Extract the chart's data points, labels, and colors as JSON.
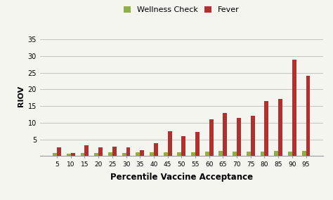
{
  "categories": [
    5,
    10,
    15,
    20,
    25,
    30,
    35,
    40,
    45,
    50,
    55,
    60,
    65,
    70,
    75,
    80,
    85,
    90,
    95
  ],
  "wellness_check": [
    1.0,
    0.8,
    0.9,
    1.0,
    1.1,
    1.0,
    1.1,
    1.2,
    1.1,
    1.2,
    1.2,
    1.3,
    1.5,
    1.3,
    1.4,
    1.4,
    1.5,
    1.4,
    1.5
  ],
  "fever": [
    2.6,
    0.9,
    3.2,
    2.6,
    2.9,
    2.6,
    1.7,
    3.9,
    7.5,
    6.0,
    7.2,
    11.1,
    13.0,
    11.4,
    12.0,
    16.4,
    17.1,
    29.0,
    24.1
  ],
  "wellness_color": "#8db040",
  "fever_color": "#b03030",
  "ylabel": "RIOV",
  "xlabel": "Percentile Vaccine Acceptance",
  "legend_wellness": "Wellness Check",
  "legend_fever": "Fever",
  "ylim": [
    0,
    36
  ],
  "yticks": [
    0,
    5,
    10,
    15,
    20,
    25,
    30,
    35
  ],
  "background_color": "#f5f5f0",
  "plot_bg_color": "#f5f5f0",
  "grid_color": "#bbbbbb",
  "bar_width": 0.3
}
